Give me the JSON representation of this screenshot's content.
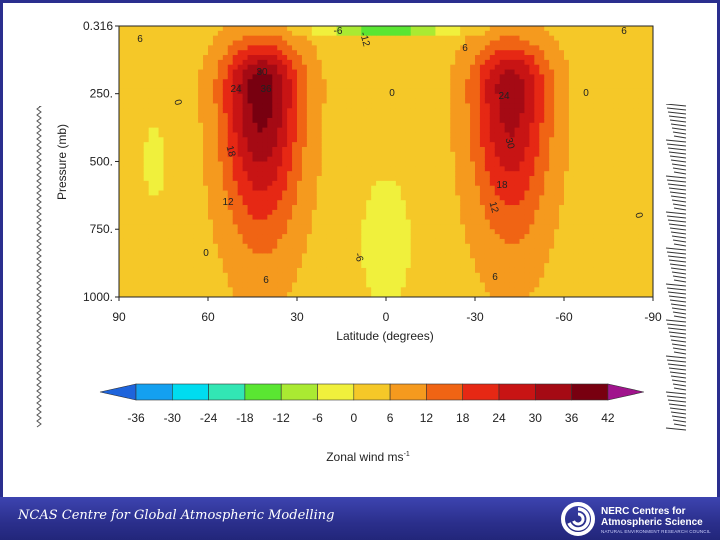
{
  "footer": {
    "title": "NCAS Centre for Global Atmospheric Modelling",
    "org_name_line1": "NERC Centres for",
    "org_name_line2": "Atmospheric Science",
    "org_subtitle": "NATURAL ENVIRONMENT RESEARCH COUNCIL",
    "logo_icon": "nerc-swirl-logo-icon"
  },
  "chart_data": {
    "type": "heatmap",
    "subtype": "filled-contour",
    "xlabel": "Latitude (degrees)",
    "ylabel": "Pressure (mb)",
    "xticks": [
      90,
      60,
      30,
      0,
      -30,
      -60,
      -90
    ],
    "yticks": [
      "0.316",
      "250.",
      "500.",
      "750.",
      "1000."
    ],
    "xlim": [
      90,
      -90
    ],
    "ylim": [
      0.316,
      1000
    ],
    "grid": false,
    "colorbar": {
      "label": "Zonal wind ms",
      "label_superscript": "-1",
      "levels": [
        -36,
        -30,
        -24,
        -18,
        -12,
        -6,
        0,
        6,
        12,
        18,
        24,
        30,
        36,
        42
      ],
      "colors": [
        "#1e64dc",
        "#14a0f0",
        "#00dcf0",
        "#32e6b4",
        "#5ae632",
        "#aaea32",
        "#f0f03c",
        "#f5c828",
        "#f59a1e",
        "#f06414",
        "#e62814",
        "#c81414",
        "#a50a14",
        "#780010",
        "#a0148c"
      ]
    },
    "jets": [
      {
        "latitude": 42,
        "pressure": 220,
        "max_speed": 36
      },
      {
        "latitude": -42,
        "pressure": 220,
        "max_speed": 30
      }
    ],
    "contour_labels": [
      "6",
      "18",
      "30",
      "-6",
      "-12",
      "24",
      "36",
      "0",
      "12",
      "6",
      "12",
      "24",
      "18",
      "30",
      "0",
      "6",
      "-6",
      "0",
      "0",
      "0",
      "6",
      "6"
    ]
  }
}
